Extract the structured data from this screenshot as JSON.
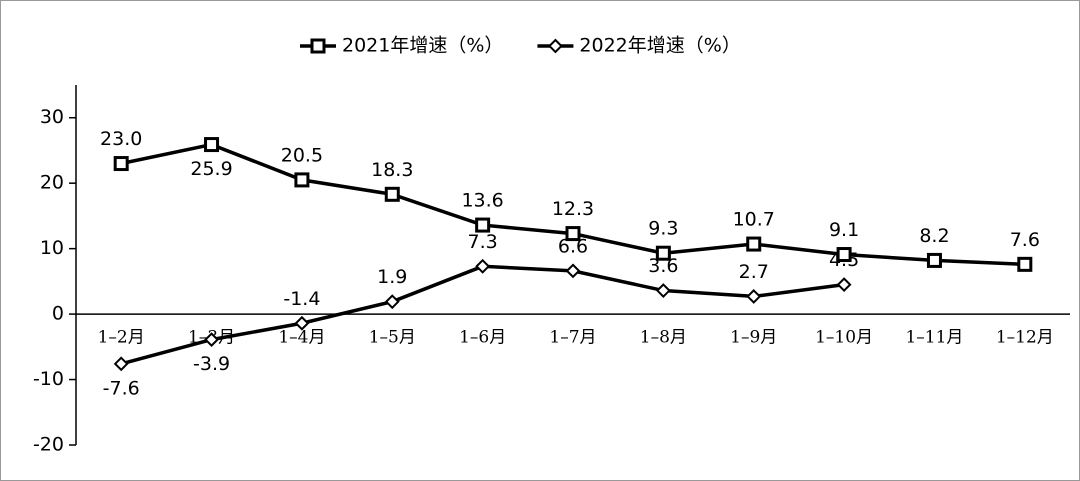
{
  "chart_data": {
    "type": "line",
    "categories": [
      "1–2月",
      "1–3月",
      "1–4月",
      "1–5月",
      "1–6月",
      "1–7月",
      "1–8月",
      "1–9月",
      "1–10月",
      "1–11月",
      "1–12月"
    ],
    "series": [
      {
        "name": "2021年增速（%）",
        "color": "#000000",
        "marker": "square",
        "values": [
          23.0,
          25.9,
          20.5,
          18.3,
          13.6,
          12.3,
          9.3,
          10.7,
          9.1,
          8.2,
          7.6
        ],
        "value_labels": [
          "23.0",
          "25.9",
          "20.5",
          "18.3",
          "13.6",
          "12.3",
          "9.3",
          "10.7",
          "9.1",
          "8.2",
          "7.6"
        ]
      },
      {
        "name": "2022年增速（%）",
        "color": "#000000",
        "marker": "diamond",
        "values": [
          -7.6,
          -3.9,
          -1.4,
          1.9,
          7.3,
          6.6,
          3.6,
          2.7,
          4.5,
          null,
          null
        ]
      }
    ],
    "ylim": [
      -20,
      35
    ],
    "yticks": [
      -20,
      -10,
      0,
      10,
      20,
      30
    ],
    "grid": false,
    "legend": "top"
  }
}
